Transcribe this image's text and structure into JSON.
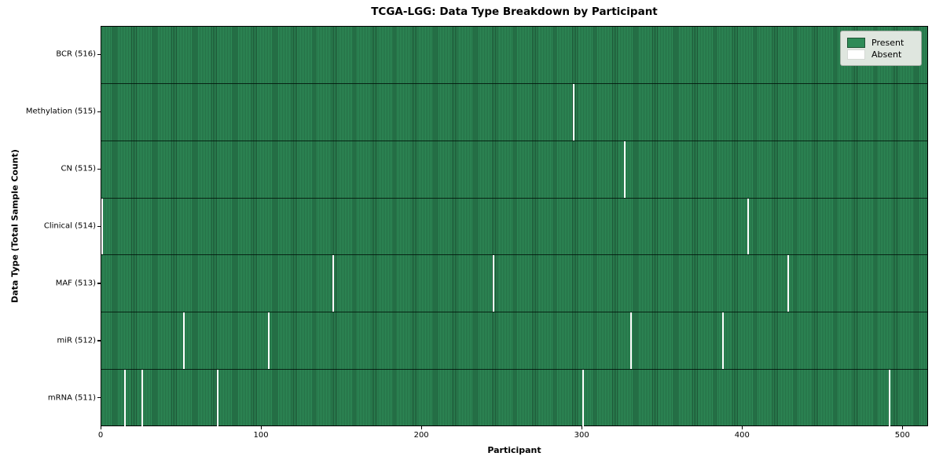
{
  "title": "TCGA-LGG: Data Type Breakdown by Participant",
  "xlabel": "Participant",
  "ylabel": "Data Type (Total Sample Count)",
  "legend": {
    "present_label": "Present",
    "absent_label": "Absent"
  },
  "colors": {
    "present": "#2e8b57",
    "present_edge": "#1b5133",
    "absent": "#ffffff",
    "legend_bg": "#dfe6df"
  },
  "chart_data": {
    "type": "heatmap",
    "title": "TCGA-LGG: Data Type Breakdown by Participant",
    "xlabel": "Participant",
    "ylabel": "Data Type (Total Sample Count)",
    "legend_entries": [
      "Present",
      "Absent"
    ],
    "legend_position": "upper right",
    "x_range": [
      0,
      516
    ],
    "x_ticks": [
      0,
      100,
      200,
      300,
      400,
      500
    ],
    "n_participants": 516,
    "rows": [
      {
        "label": "BCR (516)",
        "data_type": "BCR",
        "total_samples": 516,
        "absent_participants": []
      },
      {
        "label": "Methylation (515)",
        "data_type": "Methylation",
        "total_samples": 515,
        "absent_participants": [
          294
        ]
      },
      {
        "label": "CN (515)",
        "data_type": "CN",
        "total_samples": 515,
        "absent_participants": [
          326
        ]
      },
      {
        "label": "Clinical (514)",
        "data_type": "Clinical",
        "total_samples": 514,
        "absent_participants": [
          0,
          403
        ]
      },
      {
        "label": "MAF (513)",
        "data_type": "MAF",
        "total_samples": 513,
        "absent_participants": [
          144,
          244,
          428
        ]
      },
      {
        "label": "miR (512)",
        "data_type": "miR",
        "total_samples": 512,
        "absent_participants": [
          51,
          104,
          330,
          387
        ]
      },
      {
        "label": "mRNA (511)",
        "data_type": "mRNA",
        "total_samples": 511,
        "absent_participants": [
          14,
          25,
          72,
          300,
          491
        ]
      }
    ]
  }
}
